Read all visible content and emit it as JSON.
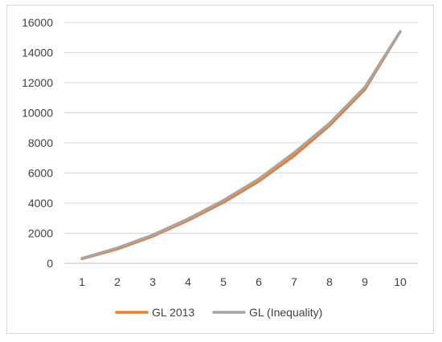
{
  "chart_data": {
    "type": "line",
    "title": "",
    "xlabel": "",
    "ylabel": "",
    "x": [
      1,
      2,
      3,
      4,
      5,
      6,
      7,
      8,
      9,
      10
    ],
    "ylim": [
      0,
      16000
    ],
    "yticks": [
      0,
      2000,
      4000,
      6000,
      8000,
      10000,
      12000,
      14000,
      16000
    ],
    "grid": true,
    "legend_position": "bottom",
    "series": [
      {
        "name": "GL 2013",
        "color": "#ed7d31",
        "values": [
          300,
          950,
          1800,
          2850,
          4050,
          5450,
          7150,
          9150,
          11550,
          15400
        ]
      },
      {
        "name": "GL (Inequality)",
        "color": "#a5a5a5",
        "values": [
          330,
          1020,
          1880,
          2950,
          4180,
          5600,
          7350,
          9300,
          11700,
          15400
        ]
      }
    ]
  }
}
